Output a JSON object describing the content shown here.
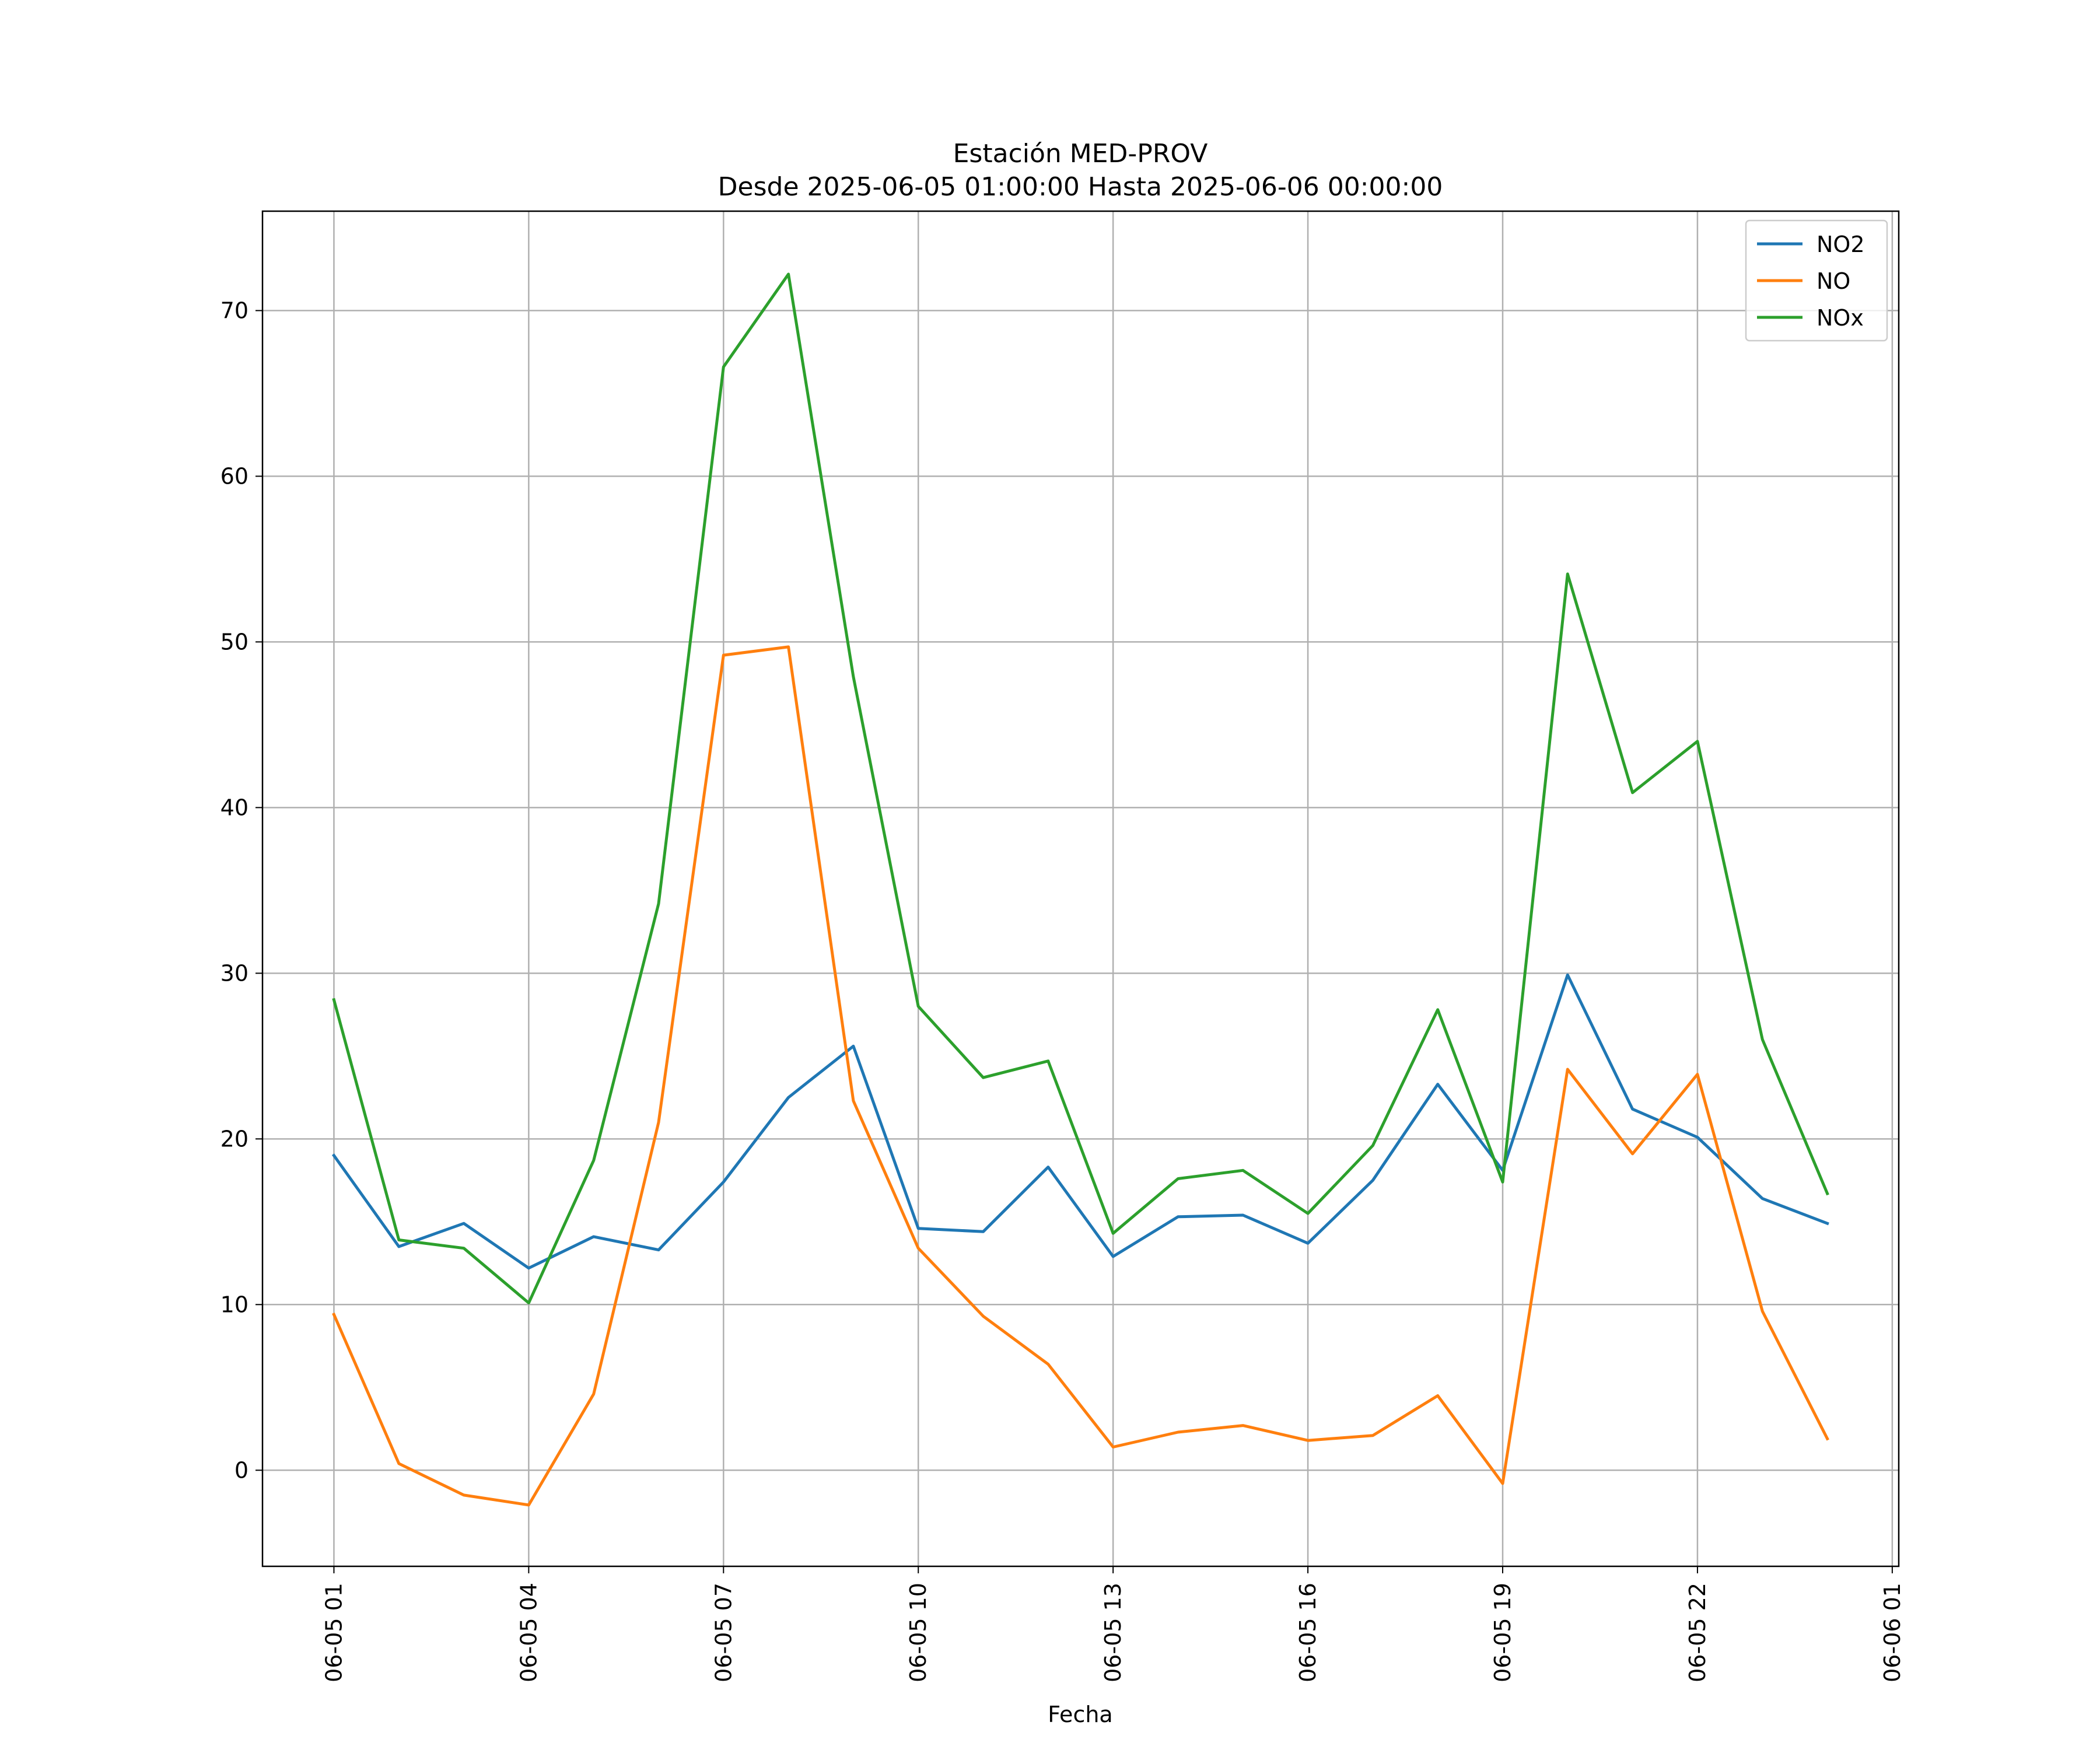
{
  "chart_data": {
    "type": "line",
    "title": "Estación MED-PROV",
    "subtitle": "Desde 2025-06-05 01:00:00 Hasta 2025-06-06 00:00:00",
    "xlabel": "Fecha",
    "ylabel": "",
    "x": [
      "2025-06-05 01:00",
      "2025-06-05 02:00",
      "2025-06-05 03:00",
      "2025-06-05 04:00",
      "2025-06-05 05:00",
      "2025-06-05 06:00",
      "2025-06-05 07:00",
      "2025-06-05 08:00",
      "2025-06-05 09:00",
      "2025-06-05 10:00",
      "2025-06-05 11:00",
      "2025-06-05 12:00",
      "2025-06-05 13:00",
      "2025-06-05 14:00",
      "2025-06-05 15:00",
      "2025-06-05 16:00",
      "2025-06-05 17:00",
      "2025-06-05 18:00",
      "2025-06-05 19:00",
      "2025-06-05 20:00",
      "2025-06-05 21:00",
      "2025-06-05 22:00",
      "2025-06-05 23:00",
      "2025-06-06 00:00"
    ],
    "x_ticks": [
      {
        "value": "2025-06-05 01:00",
        "label": "06-05 01"
      },
      {
        "value": "2025-06-05 04:00",
        "label": "06-05 04"
      },
      {
        "value": "2025-06-05 07:00",
        "label": "06-05 07"
      },
      {
        "value": "2025-06-05 10:00",
        "label": "06-05 10"
      },
      {
        "value": "2025-06-05 13:00",
        "label": "06-05 13"
      },
      {
        "value": "2025-06-05 16:00",
        "label": "06-05 16"
      },
      {
        "value": "2025-06-05 19:00",
        "label": "06-05 19"
      },
      {
        "value": "2025-06-05 22:00",
        "label": "06-05 22"
      },
      {
        "value": "2025-06-06 01:00",
        "label": "06-06 01"
      }
    ],
    "xlim": [
      "2025-06-04 23:54",
      "2025-06-06 01:06"
    ],
    "ylim": [
      -5.8,
      76
    ],
    "y_ticks": [
      0,
      10,
      20,
      30,
      40,
      50,
      60,
      70
    ],
    "grid": true,
    "legend_position": "top-right",
    "series": [
      {
        "name": "NO2",
        "color": "#1f77b4",
        "values": [
          19.0,
          13.5,
          14.9,
          12.2,
          14.1,
          13.3,
          17.4,
          22.5,
          25.6,
          14.6,
          14.4,
          18.3,
          12.9,
          15.3,
          15.4,
          13.7,
          17.5,
          23.3,
          18.1,
          29.9,
          21.8,
          20.1,
          16.4,
          14.9
        ]
      },
      {
        "name": "NO",
        "color": "#ff7f0e",
        "values": [
          9.4,
          0.4,
          -1.5,
          -2.1,
          4.6,
          21.0,
          49.2,
          49.7,
          22.3,
          13.4,
          9.3,
          6.4,
          1.4,
          2.3,
          2.7,
          1.8,
          2.1,
          4.5,
          -0.8,
          24.2,
          19.1,
          23.9,
          9.6,
          1.9
        ]
      },
      {
        "name": "NOx",
        "color": "#2ca02c",
        "values": [
          28.4,
          13.9,
          13.4,
          10.1,
          18.7,
          34.2,
          66.6,
          72.2,
          47.9,
          28.0,
          23.7,
          24.7,
          14.3,
          17.6,
          18.1,
          15.5,
          19.6,
          27.8,
          17.4,
          54.1,
          40.9,
          44.0,
          26.0,
          16.7
        ]
      }
    ]
  }
}
